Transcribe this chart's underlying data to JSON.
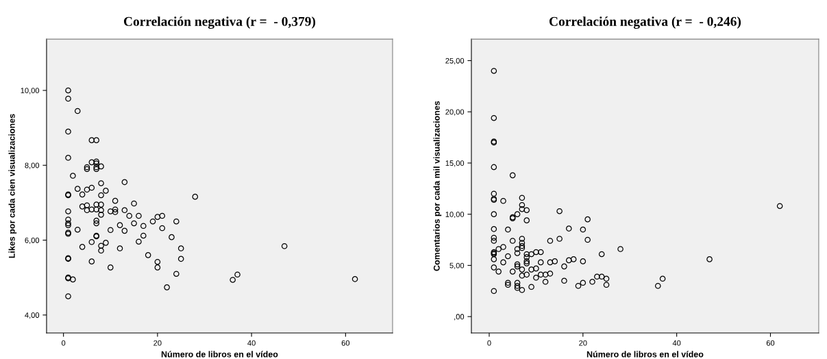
{
  "chart_data": [
    {
      "type": "scatter",
      "title": "Correlación negativa (r =  - 0,379)",
      "xlabel": "Número de libros en el vídeo",
      "ylabel": "Likes por cada cien visualizaciones",
      "marker": "circle",
      "grid": false,
      "xlim": [
        -3.6,
        70
      ],
      "ylim": [
        3.52,
        11.37
      ],
      "xticks": [
        0,
        20,
        40,
        60
      ],
      "yticks": [
        {
          "value": 4,
          "label": "4,00"
        },
        {
          "value": 6,
          "label": "6,00"
        },
        {
          "value": 8,
          "label": "8,00"
        },
        {
          "value": 10,
          "label": "10,00"
        }
      ],
      "series": [
        {
          "color": "#000000",
          "x": [
            1,
            1,
            1,
            1,
            1,
            1,
            1,
            1,
            1,
            1,
            1,
            1,
            1,
            1,
            1,
            1,
            1,
            2,
            2,
            3,
            3,
            3,
            4,
            4,
            4,
            5,
            5,
            5,
            5,
            5,
            6,
            6,
            6,
            6,
            6,
            6,
            7,
            7,
            7,
            7,
            7,
            7,
            7,
            7,
            7,
            7,
            7,
            8,
            8,
            8,
            8,
            8,
            8,
            8,
            8,
            9,
            9,
            10,
            10,
            10,
            11,
            11,
            11,
            12,
            12,
            13,
            13,
            13,
            14,
            15,
            15,
            16,
            16,
            17,
            17,
            18,
            19,
            20,
            20,
            20,
            21,
            21,
            22,
            23,
            24,
            24,
            25,
            25,
            28,
            36,
            37,
            47,
            62
          ],
          "values": [
            10.0,
            9.78,
            8.9,
            8.2,
            7.22,
            7.2,
            6.77,
            6.55,
            6.45,
            6.4,
            6.2,
            6.17,
            5.52,
            5.5,
            5.0,
            4.98,
            4.5,
            7.72,
            4.95,
            9.45,
            7.37,
            6.28,
            7.22,
            6.9,
            5.82,
            7.95,
            7.9,
            7.35,
            6.93,
            6.8,
            8.67,
            8.08,
            7.4,
            6.82,
            5.95,
            5.43,
            8.67,
            8.1,
            8.05,
            7.95,
            7.9,
            6.95,
            6.82,
            6.52,
            6.45,
            6.12,
            6.1,
            7.97,
            7.52,
            7.2,
            6.95,
            6.8,
            6.68,
            5.85,
            5.72,
            7.32,
            5.93,
            6.77,
            6.27,
            5.27,
            7.05,
            6.82,
            6.75,
            6.4,
            5.78,
            7.55,
            6.8,
            6.25,
            6.65,
            6.98,
            6.45,
            6.65,
            5.96,
            6.38,
            6.12,
            5.6,
            6.5,
            6.62,
            5.42,
            5.27,
            6.65,
            6.32,
            4.74,
            6.08,
            6.5,
            5.1,
            5.78,
            5.5,
            7.16,
            4.94,
            5.08,
            5.84,
            4.96
          ]
        }
      ]
    },
    {
      "type": "scatter",
      "title": "Correlación negativa (r =  - 0,246)",
      "xlabel": "Número de libros en el vídeo",
      "ylabel": "Comentarios por cada mil visualizaciones",
      "marker": "circle",
      "grid": false,
      "xlim": [
        -3.8,
        70.3
      ],
      "ylim": [
        -1.6,
        27.1
      ],
      "xticks": [
        0,
        20,
        40,
        60
      ],
      "yticks": [
        {
          "value": 0,
          "label": ",00"
        },
        {
          "value": 5,
          "label": "5,00"
        },
        {
          "value": 10,
          "label": "10,00"
        },
        {
          "value": 15,
          "label": "15,00"
        },
        {
          "value": 20,
          "label": "20,00"
        },
        {
          "value": 25,
          "label": "25,00"
        }
      ],
      "series": [
        {
          "color": "#000000",
          "x": [
            1,
            1,
            1,
            1,
            1,
            1,
            1,
            1,
            1,
            1,
            1,
            1,
            1,
            1,
            1,
            1,
            1,
            1,
            2,
            2,
            3,
            3,
            3,
            4,
            4,
            4,
            4,
            5,
            5,
            5,
            5,
            5,
            6,
            6,
            6,
            6,
            6,
            6,
            6,
            6,
            7,
            7,
            7,
            7,
            7,
            7,
            7,
            7,
            7,
            7,
            8,
            8,
            8,
            8,
            8,
            8,
            8,
            9,
            9,
            9,
            10,
            10,
            10,
            11,
            11,
            11,
            12,
            12,
            13,
            13,
            13,
            14,
            15,
            15,
            16,
            16,
            17,
            17,
            18,
            19,
            20,
            20,
            20,
            21,
            21,
            22,
            23,
            24,
            24,
            25,
            25,
            28,
            36,
            37,
            47,
            62
          ],
          "values": [
            24.0,
            19.4,
            17.1,
            17.0,
            14.6,
            12.0,
            11.5,
            11.4,
            10.0,
            8.55,
            7.7,
            7.4,
            6.3,
            6.2,
            6.1,
            5.6,
            4.8,
            2.5,
            6.6,
            4.4,
            11.3,
            6.8,
            5.3,
            8.5,
            5.9,
            3.3,
            3.1,
            13.8,
            9.7,
            9.6,
            7.4,
            4.4,
            10.0,
            6.6,
            6.2,
            5.1,
            4.9,
            3.3,
            3.0,
            2.8,
            11.6,
            10.9,
            10.5,
            7.6,
            7.2,
            6.9,
            6.7,
            4.6,
            4.0,
            2.6,
            10.4,
            9.4,
            6.1,
            5.8,
            5.4,
            5.2,
            4.1,
            6.1,
            4.6,
            2.9,
            6.3,
            4.7,
            3.8,
            6.3,
            5.3,
            4.1,
            4.1,
            3.4,
            7.4,
            5.3,
            4.2,
            5.4,
            10.3,
            7.6,
            4.9,
            3.5,
            8.6,
            5.5,
            5.6,
            3.0,
            8.5,
            5.4,
            3.3,
            9.5,
            7.5,
            3.4,
            3.9,
            6.1,
            3.9,
            3.7,
            3.1,
            6.6,
            3.0,
            3.7,
            5.6,
            10.8
          ]
        }
      ]
    }
  ]
}
